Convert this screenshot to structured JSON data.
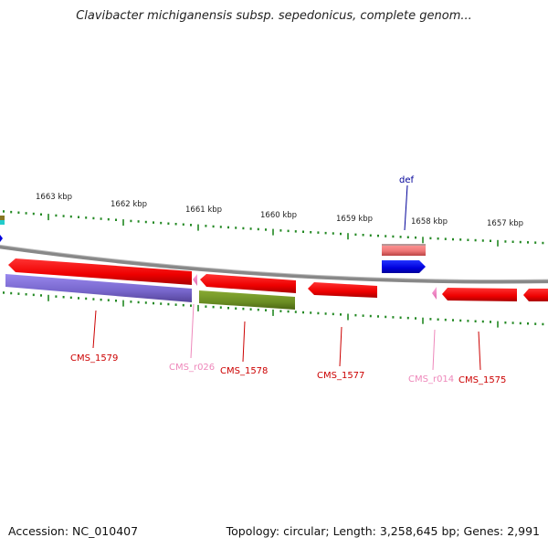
{
  "title": "Clavibacter michiganensis subsp. sepedonicus, complete genom...",
  "footer": {
    "accession": "Accession: NC_010407",
    "summary": "Topology: circular; Length: 3,258,645 bp; Genes: 2,991"
  },
  "ruler": {
    "ticks": [
      {
        "label": "1663 kbp"
      },
      {
        "label": "1662 kbp"
      },
      {
        "label": "1661 kbp"
      },
      {
        "label": "1660 kbp"
      },
      {
        "label": "1659 kbp"
      },
      {
        "label": "1658 kbp"
      },
      {
        "label": "1657 kbp"
      }
    ]
  },
  "features": [
    {
      "label": "def",
      "color": "#000099",
      "kind": "label"
    },
    {
      "label": "CMS_1579",
      "color": "#cc0000"
    },
    {
      "label": "CMS_r026",
      "color": "#ee88bb"
    },
    {
      "label": "CMS_1578",
      "color": "#cc0000"
    },
    {
      "label": "CMS_1577",
      "color": "#cc0000"
    },
    {
      "label": "CMS_r014",
      "color": "#ee88bb"
    },
    {
      "label": "CMS_1575",
      "color": "#cc0000"
    }
  ],
  "colors": {
    "cds": "#ee0000",
    "rrna": "#ee88cc",
    "pfam": "#7766cc",
    "domain": "#6b8e23",
    "def_gene": "#0000dd",
    "def_product": "#ee7777",
    "backbone": "#888888",
    "ticks": "#228822"
  }
}
